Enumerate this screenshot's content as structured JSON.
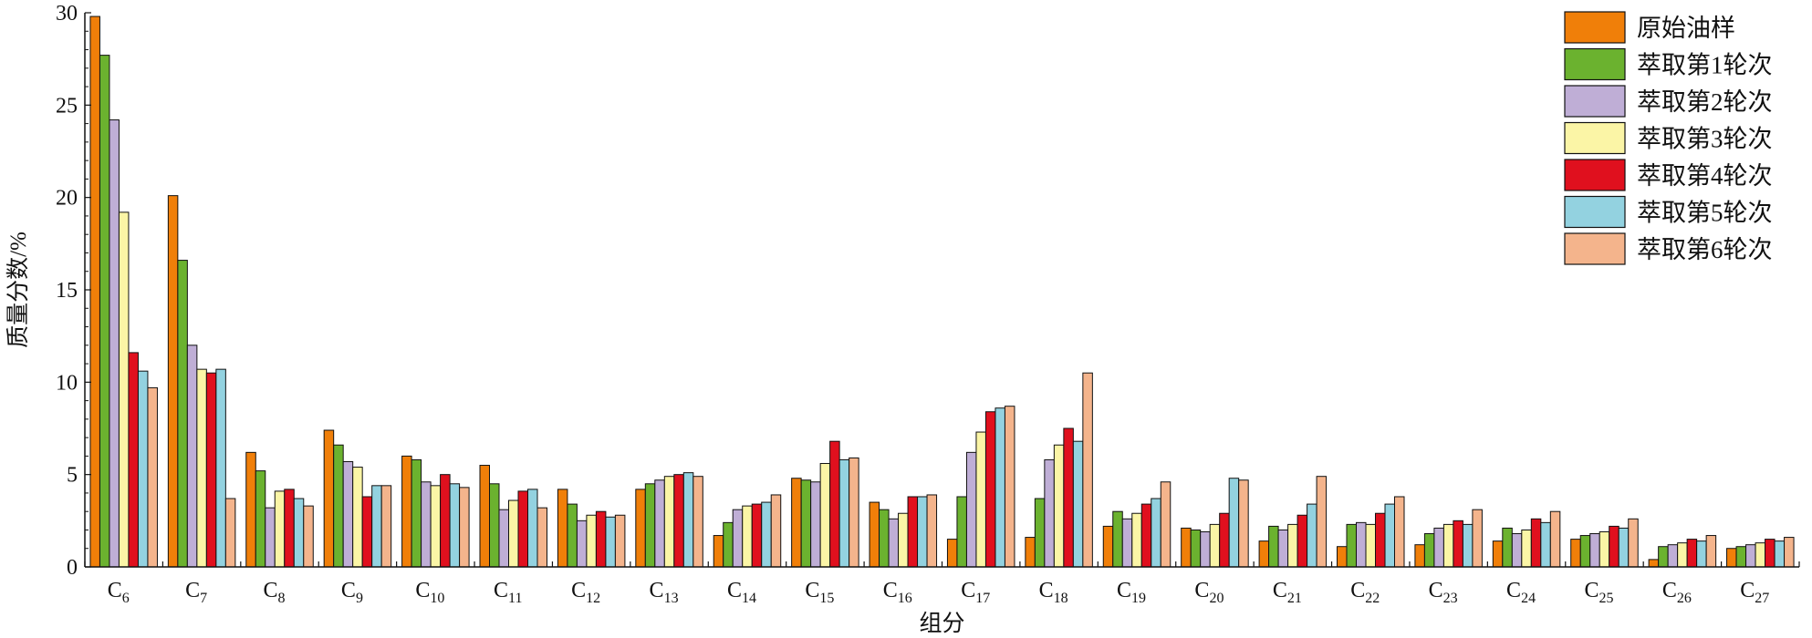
{
  "chart_data": {
    "type": "bar",
    "xlabel": "组分",
    "ylabel": "质量分数/%",
    "ylim": [
      0,
      30
    ],
    "yticks": [
      0,
      5,
      10,
      15,
      20,
      25,
      30
    ],
    "legend_position": "top-right",
    "grid": false,
    "categories": [
      {
        "base": "C",
        "sub": "6"
      },
      {
        "base": "C",
        "sub": "7"
      },
      {
        "base": "C",
        "sub": "8"
      },
      {
        "base": "C",
        "sub": "9"
      },
      {
        "base": "C",
        "sub": "10"
      },
      {
        "base": "C",
        "sub": "11"
      },
      {
        "base": "C",
        "sub": "12"
      },
      {
        "base": "C",
        "sub": "13"
      },
      {
        "base": "C",
        "sub": "14"
      },
      {
        "base": "C",
        "sub": "15"
      },
      {
        "base": "C",
        "sub": "16"
      },
      {
        "base": "C",
        "sub": "17"
      },
      {
        "base": "C",
        "sub": "18"
      },
      {
        "base": "C",
        "sub": "19"
      },
      {
        "base": "C",
        "sub": "20"
      },
      {
        "base": "C",
        "sub": "21"
      },
      {
        "base": "C",
        "sub": "22"
      },
      {
        "base": "C",
        "sub": "23"
      },
      {
        "base": "C",
        "sub": "24"
      },
      {
        "base": "C",
        "sub": "25"
      },
      {
        "base": "C",
        "sub": "26"
      },
      {
        "base": "C",
        "sub": "27"
      }
    ],
    "series": [
      {
        "name": "原始油样",
        "color": "#f07f09",
        "values": [
          29.8,
          20.1,
          6.2,
          7.4,
          6.0,
          5.5,
          4.2,
          4.2,
          1.7,
          4.8,
          3.5,
          1.5,
          1.6,
          2.2,
          2.1,
          1.4,
          1.1,
          1.2,
          1.4,
          1.5,
          0.4,
          1.0
        ]
      },
      {
        "name": "萃取第1轮次",
        "color": "#6bb22f",
        "values": [
          27.7,
          16.6,
          5.2,
          6.6,
          5.8,
          4.5,
          3.4,
          4.5,
          2.4,
          4.7,
          3.1,
          3.8,
          3.7,
          3.0,
          2.0,
          2.2,
          2.3,
          1.8,
          2.1,
          1.7,
          1.1,
          1.1
        ]
      },
      {
        "name": "萃取第2轮次",
        "color": "#bfaed6",
        "values": [
          24.2,
          12.0,
          3.2,
          5.7,
          4.6,
          3.1,
          2.5,
          4.7,
          3.1,
          4.6,
          2.6,
          6.2,
          5.8,
          2.6,
          1.9,
          2.0,
          2.4,
          2.1,
          1.8,
          1.8,
          1.2,
          1.2
        ]
      },
      {
        "name": "萃取第3轮次",
        "color": "#fbf5a6",
        "values": [
          19.2,
          10.7,
          4.1,
          5.4,
          4.4,
          3.6,
          2.8,
          4.9,
          3.3,
          5.6,
          2.9,
          7.3,
          6.6,
          2.9,
          2.3,
          2.3,
          2.3,
          2.3,
          2.0,
          1.9,
          1.3,
          1.3
        ]
      },
      {
        "name": "萃取第4轮次",
        "color": "#e0101e",
        "values": [
          11.6,
          10.5,
          4.2,
          3.8,
          5.0,
          4.1,
          3.0,
          5.0,
          3.4,
          6.8,
          3.8,
          8.4,
          7.5,
          3.4,
          2.9,
          2.8,
          2.9,
          2.5,
          2.6,
          2.2,
          1.5,
          1.5
        ]
      },
      {
        "name": "萃取第5轮次",
        "color": "#93d2e0",
        "values": [
          10.6,
          10.7,
          3.7,
          4.4,
          4.5,
          4.2,
          2.7,
          5.1,
          3.5,
          5.8,
          3.8,
          8.6,
          6.8,
          3.7,
          4.8,
          3.4,
          3.4,
          2.3,
          2.4,
          2.1,
          1.4,
          1.4
        ]
      },
      {
        "name": "萃取第6轮次",
        "color": "#f4b48c",
        "values": [
          9.7,
          3.7,
          3.3,
          4.4,
          4.3,
          3.2,
          2.8,
          4.9,
          3.9,
          5.9,
          3.9,
          8.7,
          10.5,
          4.6,
          4.7,
          4.9,
          3.8,
          3.1,
          3.0,
          2.6,
          1.7,
          1.6
        ]
      }
    ]
  }
}
